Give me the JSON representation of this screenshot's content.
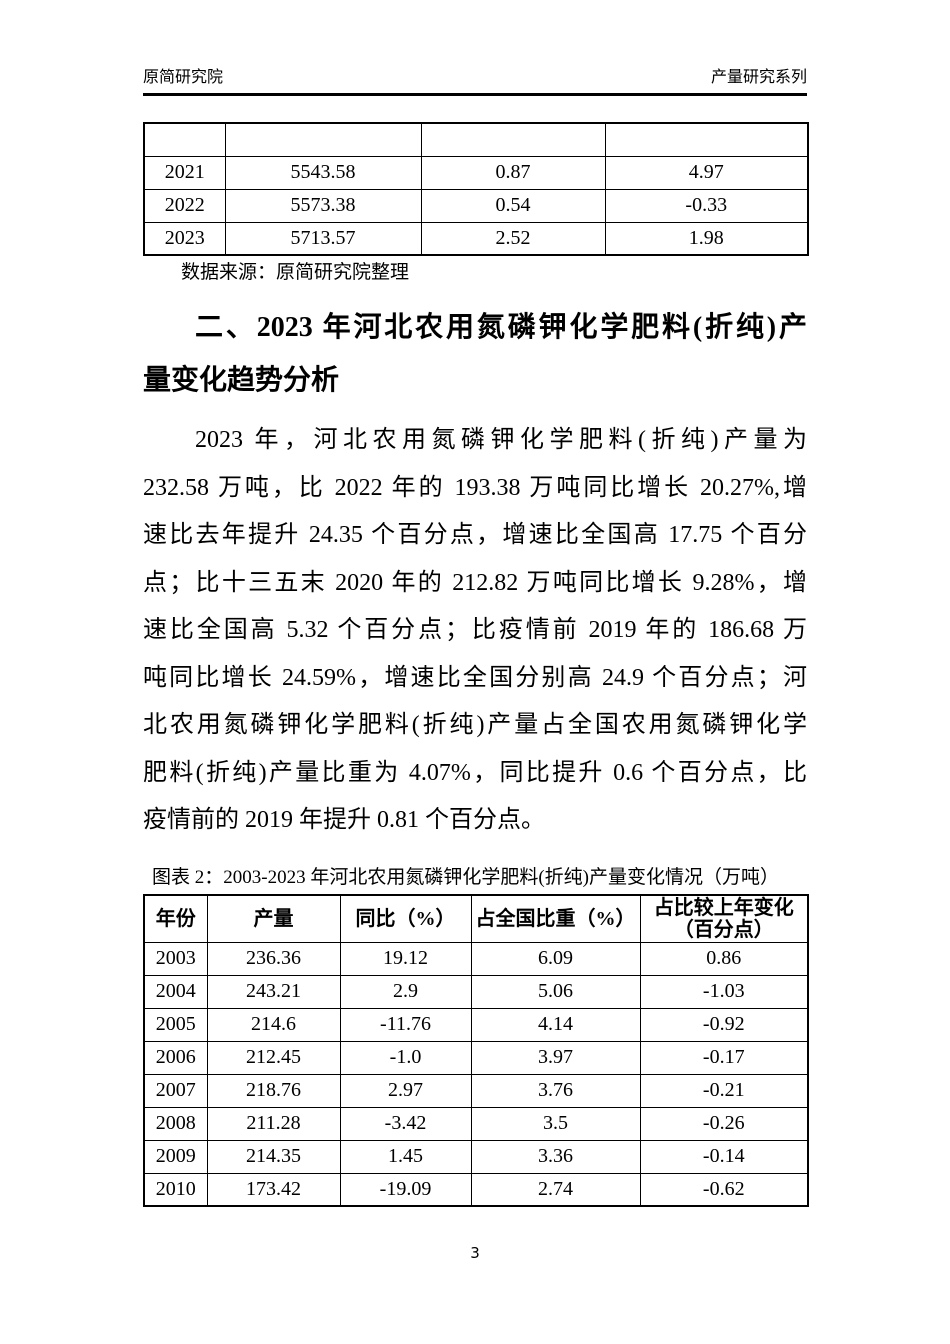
{
  "colors": {
    "ink": "#000000",
    "background": "#ffffff"
  },
  "header": {
    "left": "原简研究院",
    "right": "产量研究系列"
  },
  "table1": {
    "rows": [
      [
        "",
        "",
        "",
        ""
      ],
      [
        "2021",
        "5543.58",
        "0.87",
        "4.97"
      ],
      [
        "2022",
        "5573.38",
        "0.54",
        "-0.33"
      ],
      [
        "2023",
        "5713.57",
        "2.52",
        "1.98"
      ]
    ],
    "source_note": "数据来源：原简研究院整理"
  },
  "section": {
    "heading_lines": [
      "二、2023 年河北农用氮磷钾化学肥料(折纯)产",
      "量变化趋势分析"
    ],
    "paragraph_lines": [
      "2023 年，河北农用氮磷钾化学肥料(折纯)产量为",
      "232.58 万吨，比 2022 年的 193.38 万吨同比增长 20.27%,增",
      "速比去年提升 24.35 个百分点，增速比全国高 17.75 个百分",
      "点；比十三五末 2020 年的 212.82 万吨同比增长 9.28%，增",
      "速比全国高 5.32 个百分点；比疫情前 2019 年的 186.68 万",
      "吨同比增长 24.59%，增速比全国分别高 24.9 个百分点；河",
      "北农用氮磷钾化学肥料(折纯)产量占全国农用氮磷钾化学",
      "肥料(折纯)产量比重为 4.07%，同比提升 0.6 个百分点，比",
      "疫情前的 2019 年提升 0.81 个百分点。"
    ]
  },
  "table2": {
    "caption": "图表 2：2003-2023 年河北农用氮磷钾化学肥料(折纯)产量变化情况（万吨）",
    "headers": [
      "年份",
      "产量",
      "同比（%）",
      "占全国比重（%）",
      "占比较上年变化\n（百分点）"
    ],
    "rows": [
      [
        "2003",
        "236.36",
        "19.12",
        "6.09",
        "0.86"
      ],
      [
        "2004",
        "243.21",
        "2.9",
        "5.06",
        "-1.03"
      ],
      [
        "2005",
        "214.6",
        "-11.76",
        "4.14",
        "-0.92"
      ],
      [
        "2006",
        "212.45",
        "-1.0",
        "3.97",
        "-0.17"
      ],
      [
        "2007",
        "218.76",
        "2.97",
        "3.76",
        "-0.21"
      ],
      [
        "2008",
        "211.28",
        "-3.42",
        "3.5",
        "-0.26"
      ],
      [
        "2009",
        "214.35",
        "1.45",
        "3.36",
        "-0.14"
      ],
      [
        "2010",
        "173.42",
        "-19.09",
        "2.74",
        "-0.62"
      ]
    ]
  },
  "footer": {
    "page_number": "3"
  }
}
